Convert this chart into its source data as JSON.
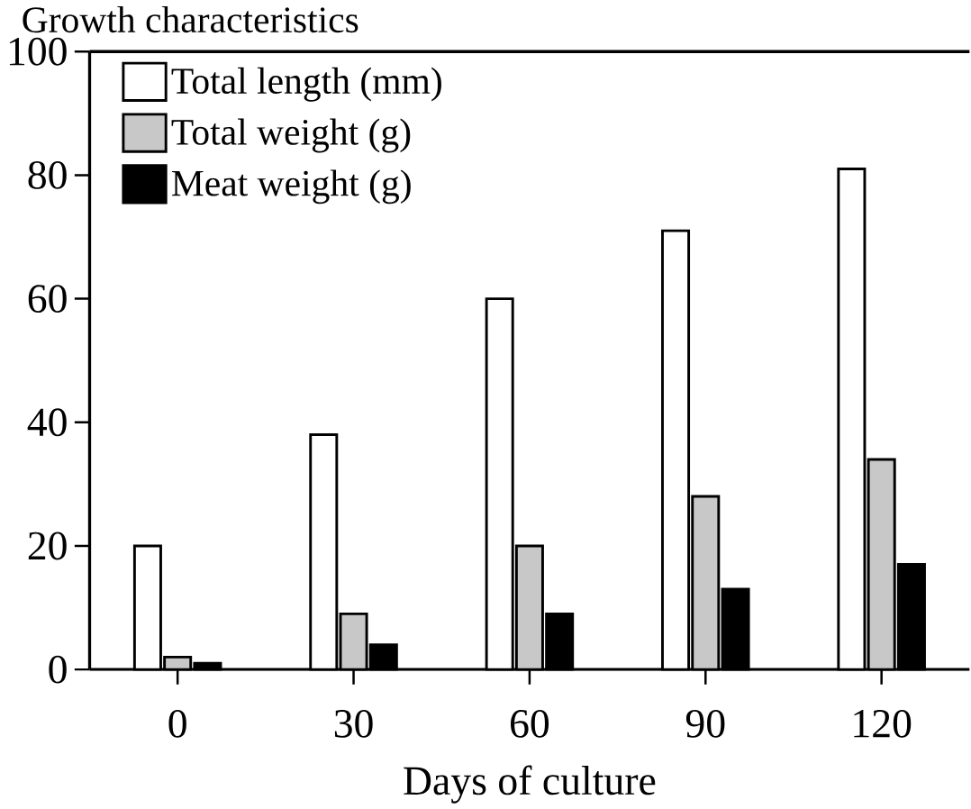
{
  "chart_data": {
    "type": "bar",
    "ylabel": "Growth characteristics",
    "xlabel": "Days of culture",
    "categories": [
      "0",
      "30",
      "60",
      "90",
      "120"
    ],
    "series": [
      {
        "name": "Total length (mm)",
        "color": "#ffffff",
        "values": [
          20,
          38,
          60,
          71,
          81
        ]
      },
      {
        "name": "Total weight (g)",
        "color": "#c8c8c8",
        "values": [
          2,
          9,
          20,
          28,
          34
        ]
      },
      {
        "name": "Meat weight (g)",
        "color": "#000000",
        "values": [
          1,
          4,
          9,
          13,
          17
        ]
      }
    ],
    "ylim": [
      0,
      100
    ],
    "yticks": [
      0,
      20,
      40,
      60,
      80,
      100
    ],
    "legend": "top left",
    "grid": false
  }
}
